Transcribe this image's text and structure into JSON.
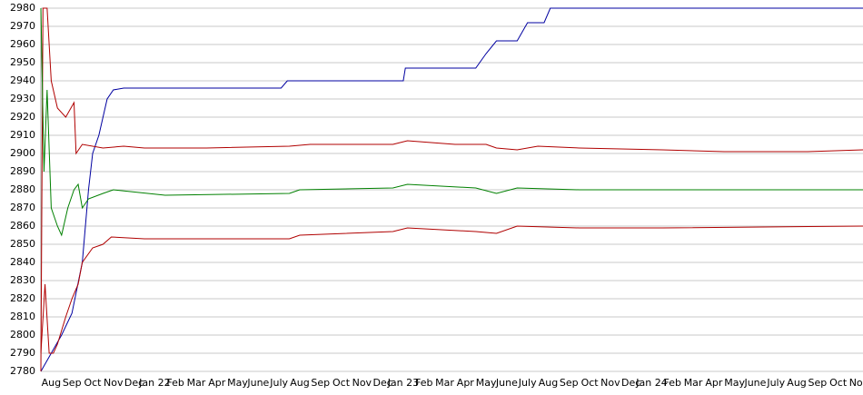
{
  "chart_data": {
    "type": "line",
    "xlim": [
      0,
      39.7
    ],
    "ylim": [
      2780,
      2980
    ],
    "yticks": [
      2780,
      2790,
      2800,
      2810,
      2820,
      2830,
      2840,
      2850,
      2860,
      2870,
      2880,
      2890,
      2900,
      2910,
      2920,
      2930,
      2940,
      2950,
      2960,
      2970,
      2980
    ],
    "xticks": [
      {
        "value": 0.5,
        "label": "Aug"
      },
      {
        "value": 1.5,
        "label": "Sep"
      },
      {
        "value": 2.5,
        "label": "Oct"
      },
      {
        "value": 3.5,
        "label": "Nov"
      },
      {
        "value": 4.5,
        "label": "Dec"
      },
      {
        "value": 5.5,
        "label": "Jan 22"
      },
      {
        "value": 6.5,
        "label": "Feb"
      },
      {
        "value": 7.5,
        "label": "Mar"
      },
      {
        "value": 8.5,
        "label": "Apr"
      },
      {
        "value": 9.5,
        "label": "May"
      },
      {
        "value": 10.5,
        "label": "June"
      },
      {
        "value": 11.5,
        "label": "July"
      },
      {
        "value": 12.5,
        "label": "Aug"
      },
      {
        "value": 13.5,
        "label": "Sep"
      },
      {
        "value": 14.5,
        "label": "Oct"
      },
      {
        "value": 15.5,
        "label": "Nov"
      },
      {
        "value": 16.5,
        "label": "Dec"
      },
      {
        "value": 17.5,
        "label": "Jan 23"
      },
      {
        "value": 18.5,
        "label": "Feb"
      },
      {
        "value": 19.5,
        "label": "Mar"
      },
      {
        "value": 20.5,
        "label": "Apr"
      },
      {
        "value": 21.5,
        "label": "May"
      },
      {
        "value": 22.5,
        "label": "June"
      },
      {
        "value": 23.5,
        "label": "July"
      },
      {
        "value": 24.5,
        "label": "Aug"
      },
      {
        "value": 25.5,
        "label": "Sep"
      },
      {
        "value": 26.5,
        "label": "Oct"
      },
      {
        "value": 27.5,
        "label": "Nov"
      },
      {
        "value": 28.5,
        "label": "Dec"
      },
      {
        "value": 29.5,
        "label": "Jan 24"
      },
      {
        "value": 30.5,
        "label": "Feb"
      },
      {
        "value": 31.5,
        "label": "Mar"
      },
      {
        "value": 32.5,
        "label": "Apr"
      },
      {
        "value": 33.5,
        "label": "May"
      },
      {
        "value": 34.5,
        "label": "June"
      },
      {
        "value": 35.5,
        "label": "July"
      },
      {
        "value": 36.5,
        "label": "Aug"
      },
      {
        "value": 37.5,
        "label": "Sep"
      },
      {
        "value": 38.5,
        "label": "Oct"
      },
      {
        "value": 39.5,
        "label": "Nov"
      }
    ],
    "grid": true,
    "series": [
      {
        "color": "#0000a0",
        "x": [
          0,
          0.5,
          1,
          1.5,
          2,
          2.3,
          2.5,
          2.8,
          3.2,
          3.5,
          4,
          11.6,
          11.9,
          17.5,
          17.6,
          21,
          21.5,
          22,
          23,
          23.5,
          24.3,
          24.6,
          39.7
        ],
        "values": [
          2780,
          2790,
          2800,
          2812,
          2840,
          2880,
          2900,
          2910,
          2930,
          2935,
          2936,
          2936,
          2940,
          2940,
          2947,
          2947,
          2955,
          2962,
          2962,
          2972,
          2972,
          2980,
          2980
        ]
      },
      {
        "color": "#b00000",
        "x": [
          0,
          0.1,
          0.3,
          0.4,
          0.5,
          0.8,
          1.2,
          1.6,
          1.7,
          2,
          3,
          4,
          5,
          8,
          12,
          13,
          17,
          17.7,
          20,
          21.5,
          22,
          23,
          24,
          26,
          30,
          33,
          37,
          39.7
        ],
        "values": [
          2780,
          2980,
          2980,
          2960,
          2940,
          2925,
          2920,
          2928,
          2900,
          2905,
          2903,
          2904,
          2903,
          2903,
          2904,
          2905,
          2905,
          2907,
          2905,
          2905,
          2903,
          2902,
          2904,
          2903,
          2902,
          2901,
          2901,
          2902
        ]
      },
      {
        "color": "#008000",
        "x": [
          0,
          0.15,
          0.3,
          0.5,
          0.8,
          1,
          1.3,
          1.6,
          1.8,
          2,
          2.3,
          3,
          3.5,
          6,
          12,
          12.5,
          17,
          17.7,
          21,
          22,
          23,
          26,
          30,
          39.7
        ],
        "values": [
          2980,
          2890,
          2935,
          2870,
          2860,
          2855,
          2870,
          2880,
          2883,
          2870,
          2875,
          2878,
          2880,
          2877,
          2878,
          2880,
          2881,
          2883,
          2881,
          2878,
          2881,
          2880,
          2880,
          2880
        ]
      },
      {
        "color": "#b00000",
        "x": [
          0,
          0.2,
          0.4,
          0.6,
          0.8,
          1.2,
          1.5,
          1.8,
          2,
          2.5,
          3,
          3.4,
          5,
          12,
          12.5,
          17,
          17.7,
          21,
          22,
          23,
          26,
          30,
          39.7
        ],
        "values": [
          2790,
          2828,
          2790,
          2790,
          2795,
          2810,
          2820,
          2828,
          2840,
          2848,
          2850,
          2854,
          2853,
          2853,
          2855,
          2857,
          2859,
          2857,
          2856,
          2860,
          2859,
          2859,
          2860
        ]
      }
    ]
  }
}
